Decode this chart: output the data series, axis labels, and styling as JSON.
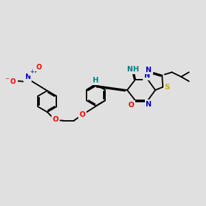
{
  "bg_color": "#e0e0e0",
  "bond_color": "#000000",
  "bond_width": 1.4,
  "dbo": 0.055,
  "atom_colors": {
    "O": "#ff0000",
    "N": "#0000cc",
    "S": "#ccaa00",
    "teal": "#008080"
  },
  "figsize": [
    3.0,
    3.0
  ],
  "dpi": 100,
  "xlim": [
    0,
    10
  ],
  "ylim": [
    0,
    10
  ]
}
